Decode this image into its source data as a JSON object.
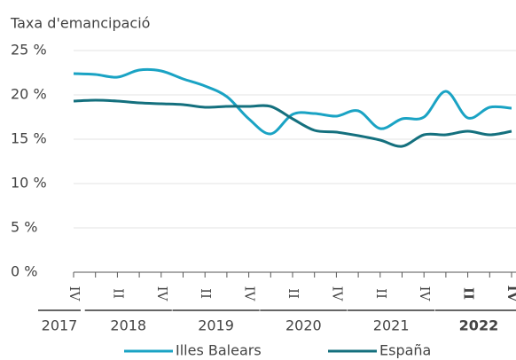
{
  "chart_data": {
    "type": "line",
    "y_label": "Taxa d'emancipació",
    "categories": [
      "IV",
      null,
      "II",
      null,
      "IV",
      null,
      "II",
      null,
      "IV",
      null,
      "II",
      null,
      "IV",
      null,
      "II",
      null,
      "IV",
      null,
      "II",
      null,
      "IV"
    ],
    "years": [
      "2017",
      "2018",
      "2019",
      "2020",
      "2021",
      "2022"
    ],
    "series": [
      {
        "name": "Illes Balears",
        "color": "#1aa3c4",
        "values": [
          22.4,
          22.3,
          22.0,
          22.8,
          22.7,
          21.8,
          21.0,
          19.8,
          17.3,
          15.6,
          17.8,
          17.9,
          17.6,
          18.2,
          16.2,
          17.3,
          17.5,
          20.4,
          17.4,
          18.6,
          18.5
        ]
      },
      {
        "name": "España",
        "color": "#14707e",
        "values": [
          19.3,
          19.4,
          19.3,
          19.1,
          19.0,
          18.9,
          18.6,
          18.7,
          18.7,
          18.7,
          17.3,
          16.0,
          15.8,
          15.4,
          14.9,
          14.2,
          15.5,
          15.5,
          15.9,
          15.5,
          15.9
        ]
      }
    ],
    "ylim": [
      0,
      25
    ],
    "yticks": [
      {
        "value": 0,
        "label": "0 %"
      },
      {
        "value": 5,
        "label": "5 %"
      },
      {
        "value": 10,
        "label": "10 %"
      },
      {
        "value": 15,
        "label": "15 %"
      },
      {
        "value": 20,
        "label": "20 %"
      },
      {
        "value": 25,
        "label": "25 %"
      }
    ],
    "grid": true,
    "legend": "bottom"
  }
}
